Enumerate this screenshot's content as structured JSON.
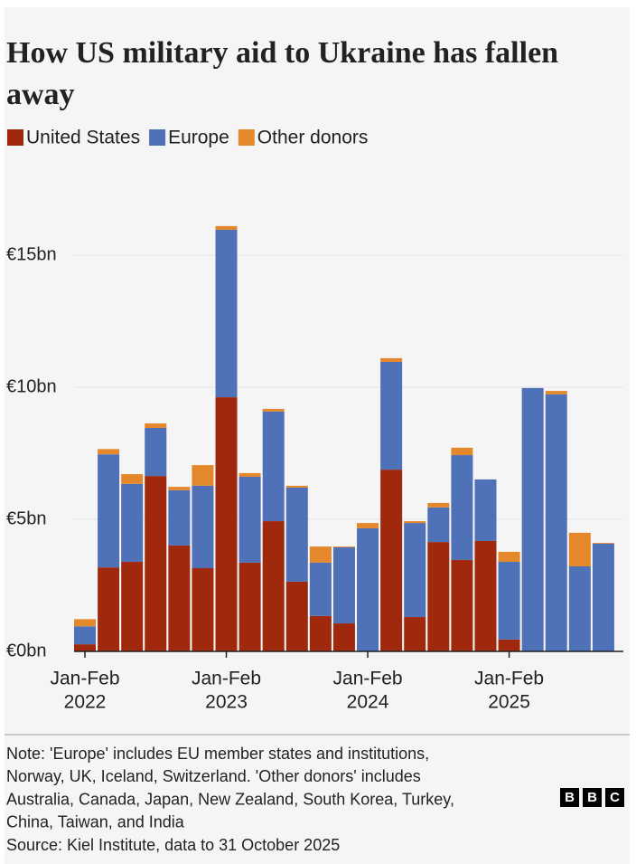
{
  "chart_data": {
    "type": "stacked-bar",
    "title": "How US military aid to Ukraine has fallen away",
    "categories": [
      [
        "Jan-Feb",
        "2022"
      ],
      null,
      null,
      null,
      null,
      null,
      [
        "Jan-Feb",
        "2023"
      ],
      null,
      null,
      null,
      null,
      null,
      [
        "Jan-Feb",
        "2024"
      ],
      null,
      null,
      null,
      null,
      null,
      [
        "Jan-Feb",
        "2025"
      ],
      null,
      null,
      null,
      null
    ],
    "series": [
      {
        "name": "United States",
        "color": "#a0290d",
        "values": [
          0.27,
          3.18,
          3.39,
          6.64,
          4.01,
          3.15,
          9.62,
          3.36,
          4.93,
          2.64,
          1.34,
          1.06,
          0,
          6.88,
          1.3,
          4.14,
          3.46,
          4.18,
          0.45,
          0,
          0,
          0,
          0
        ]
      },
      {
        "name": "Europe",
        "color": "#4f71b8",
        "values": [
          0.68,
          4.28,
          2.95,
          1.82,
          2.09,
          3.12,
          6.34,
          3.25,
          4.15,
          3.56,
          2.02,
          2.88,
          4.66,
          4.08,
          3.56,
          1.31,
          3.97,
          2.33,
          2.94,
          9.97,
          9.73,
          3.22,
          4.08
        ]
      },
      {
        "name": "Other donors",
        "color": "#e5882c",
        "values": [
          0.27,
          0.2,
          0.37,
          0.17,
          0.13,
          0.78,
          0.14,
          0.14,
          0.1,
          0.07,
          0.61,
          0.03,
          0.2,
          0.14,
          0.07,
          0.17,
          0.28,
          0,
          0.38,
          0,
          0.13,
          1.27,
          0.03
        ]
      }
    ],
    "ylim": [
      0,
      18
    ],
    "yticks": [
      {
        "value": 0,
        "label": "€0bn"
      },
      {
        "value": 5,
        "label": "€5bn"
      },
      {
        "value": 10,
        "label": "€10bn"
      },
      {
        "value": 15,
        "label": "€15bn"
      }
    ],
    "grid": true,
    "note": [
      "Note: 'Europe' includes EU member states and institutions,",
      "Norway, UK, Iceland, Switzerland. 'Other donors' includes",
      "Australia, Canada, Japan, New Zealand, South Korea, Turkey,",
      "China, Taiwan, and India"
    ],
    "source": "Source: Kiel Institute, data to 31 October 2025",
    "logo": [
      "B",
      "B",
      "C"
    ]
  }
}
